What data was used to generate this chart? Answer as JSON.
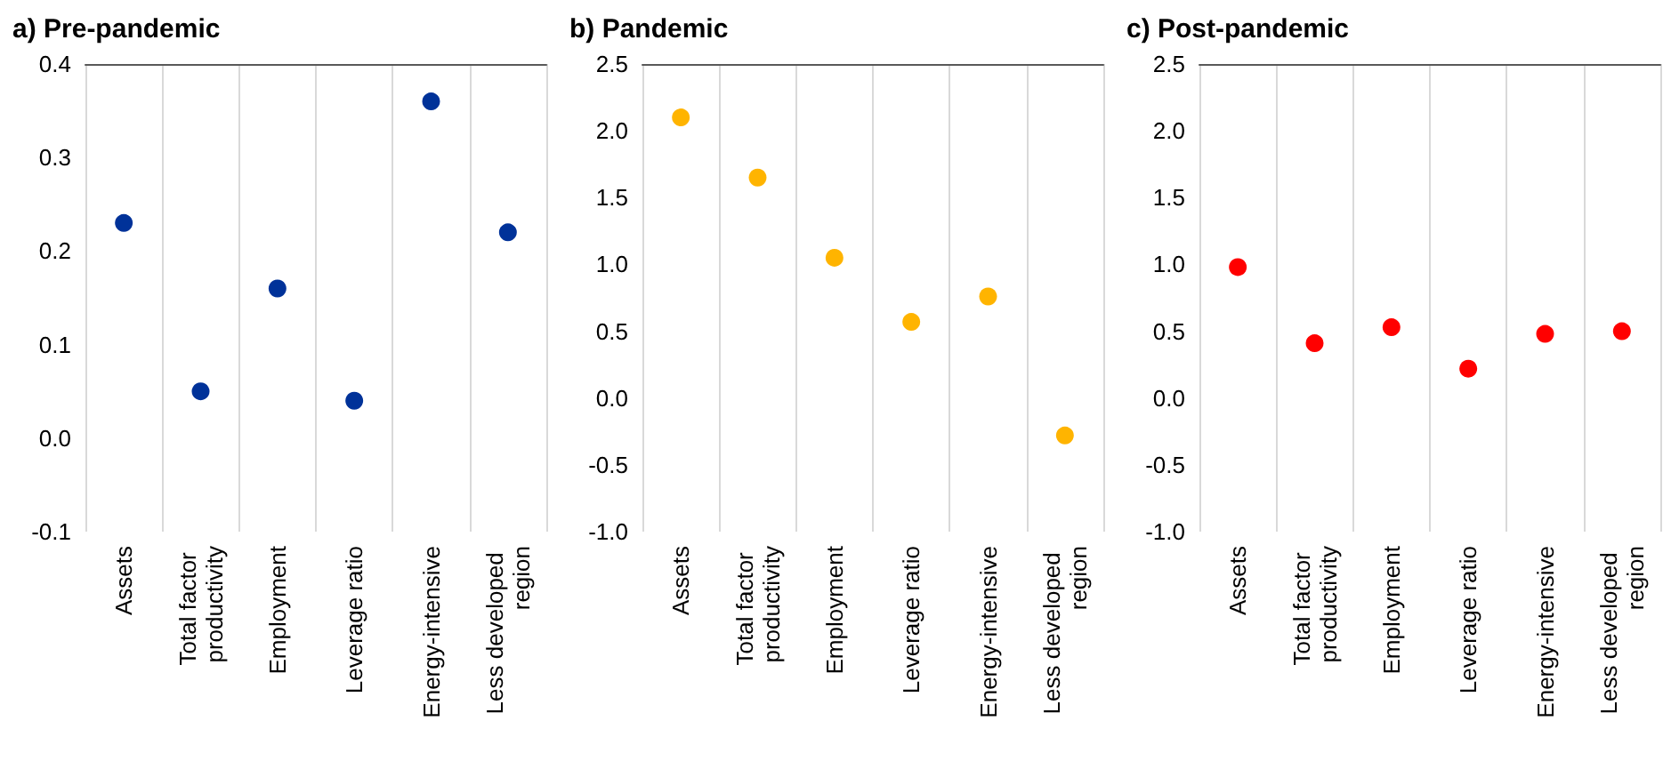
{
  "chart_data": [
    {
      "type": "scatter",
      "title": "a) Pre-pandemic",
      "categories": [
        "Assets",
        "Total factor productivity",
        "Employment",
        "Leverage ratio",
        "Energy-intensive",
        "Less developed region"
      ],
      "series": [
        {
          "color": "#003299",
          "values": [
            0.23,
            0.05,
            0.16,
            0.04,
            0.36,
            0.22
          ]
        }
      ],
      "ylim": [
        -0.1,
        0.4
      ],
      "yticks": [
        {
          "value": -0.1,
          "label": "-0.1"
        },
        {
          "value": 0,
          "label": "0.0"
        },
        {
          "value": 0.1,
          "label": "0.1"
        },
        {
          "value": 0.2,
          "label": "0.2"
        },
        {
          "value": 0.3,
          "label": "0.3"
        },
        {
          "value": 0.4,
          "label": "0.4"
        }
      ],
      "grid": "x",
      "marker": "circle"
    },
    {
      "type": "scatter",
      "title": "b) Pandemic",
      "categories": [
        "Assets",
        "Total factor productivity",
        "Employment",
        "Leverage ratio",
        "Energy-intensive",
        "Less developed region"
      ],
      "series": [
        {
          "color": "#ffb400",
          "values": [
            2.1,
            1.65,
            1.05,
            0.57,
            0.76,
            -0.28
          ]
        }
      ],
      "ylim": [
        -1,
        2.5
      ],
      "yticks": [
        {
          "value": -1,
          "label": "-1.0"
        },
        {
          "value": -0.5,
          "label": "-0.5"
        },
        {
          "value": 0,
          "label": "0.0"
        },
        {
          "value": 0.5,
          "label": "0.5"
        },
        {
          "value": 1,
          "label": "1.0"
        },
        {
          "value": 1.5,
          "label": "1.5"
        },
        {
          "value": 2,
          "label": "2.0"
        },
        {
          "value": 2.5,
          "label": "2.5"
        }
      ],
      "grid": "x",
      "marker": "circle"
    },
    {
      "type": "scatter",
      "title": "c) Post-pandemic",
      "categories": [
        "Assets",
        "Total factor productivity",
        "Employment",
        "Leverage ratio",
        "Energy-intensive",
        "Less developed region"
      ],
      "series": [
        {
          "color": "#ff0000",
          "values": [
            0.98,
            0.41,
            0.53,
            0.22,
            0.48,
            0.5
          ]
        }
      ],
      "ylim": [
        -1,
        2.5
      ],
      "yticks": [
        {
          "value": -1,
          "label": "-1.0"
        },
        {
          "value": -0.5,
          "label": "-0.5"
        },
        {
          "value": 0,
          "label": "0.0"
        },
        {
          "value": 0.5,
          "label": "0.5"
        },
        {
          "value": 1,
          "label": "1.0"
        },
        {
          "value": 1.5,
          "label": "1.5"
        },
        {
          "value": 2,
          "label": "2.0"
        },
        {
          "value": 2.5,
          "label": "2.5"
        }
      ],
      "grid": "x",
      "marker": "circle"
    }
  ]
}
